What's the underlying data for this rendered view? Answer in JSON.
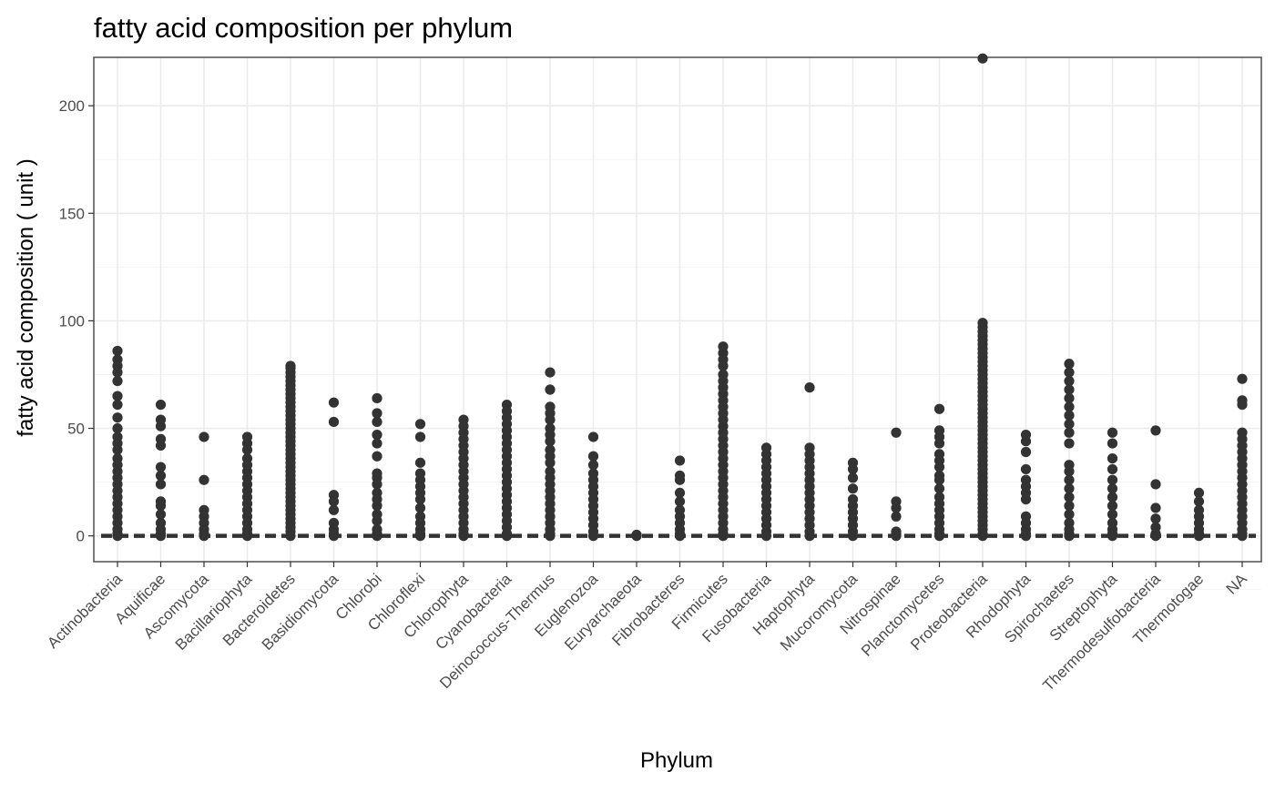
{
  "chart_data": {
    "type": "scatter",
    "title": "fatty acid composition per phylum",
    "xlabel": "Phylum",
    "ylabel": "fatty acid composition ( unit )",
    "ylim": [
      -12,
      222.5
    ],
    "yticks": [
      0,
      50,
      100,
      150,
      200
    ],
    "grid": true,
    "reference_line": {
      "style": "dashed",
      "y": 0
    },
    "categories": [
      "Actinobacteria",
      "Aquificae",
      "Ascomycota",
      "Bacillariophyta",
      "Bacteroidetes",
      "Basidiomycota",
      "Chlorobi",
      "Chloroflexi",
      "Chlorophyta",
      "Cyanobacteria",
      "Deinococcus-Thermus",
      "Euglenozoa",
      "Euryarchaeota",
      "Fibrobacteres",
      "Firmicutes",
      "Fusobacteria",
      "Haptophyta",
      "Mucoromycota",
      "Nitrospinae",
      "Planctomycetes",
      "Proteobacteria",
      "Rhodophyta",
      "Spirochaetes",
      "Streptophyta",
      "Thermodesulfobacteria",
      "Thermotogae",
      "NA"
    ],
    "points": [
      {
        "category": "Actinobacteria",
        "max": 86,
        "outliers": [
          86,
          82,
          79,
          76,
          72,
          65,
          61,
          55,
          50,
          46,
          43,
          40,
          36,
          33,
          30,
          27,
          24,
          21,
          18,
          15,
          12,
          9,
          6,
          3,
          1,
          0
        ]
      },
      {
        "category": "Aquificae",
        "max": 61,
        "outliers": [
          61,
          54,
          51,
          45,
          42,
          32,
          28,
          24,
          16,
          14,
          10,
          6,
          3,
          1,
          0
        ]
      },
      {
        "category": "Ascomycota",
        "max": 46,
        "outliers": [
          46,
          26,
          12,
          9,
          6,
          3,
          1,
          0
        ]
      },
      {
        "category": "Bacillariophyta",
        "max": 46,
        "outliers": [
          46,
          43,
          40,
          36,
          33,
          30,
          27,
          24,
          21,
          18,
          15,
          12,
          9,
          6,
          3,
          1,
          0
        ]
      },
      {
        "category": "Bacteroidetes",
        "max": 79,
        "outliers": [
          79,
          78,
          76,
          74,
          72,
          70,
          68,
          66,
          64,
          62,
          60,
          58,
          56,
          54,
          52,
          50,
          48,
          46,
          44,
          42,
          40,
          38,
          36,
          34,
          32,
          30,
          28,
          26,
          24,
          22,
          20,
          18,
          16,
          14,
          12,
          10,
          8,
          6,
          4,
          2,
          0
        ]
      },
      {
        "category": "Basidiomycota",
        "max": 62,
        "outliers": [
          62,
          53,
          19,
          16,
          12,
          6,
          3,
          1,
          0
        ]
      },
      {
        "category": "Chlorobi",
        "max": 64,
        "outliers": [
          64,
          57,
          53,
          47,
          43,
          37,
          29,
          27,
          24,
          20,
          17,
          14,
          10,
          7,
          3,
          1,
          0
        ]
      },
      {
        "category": "Chloroflexi",
        "max": 52,
        "outliers": [
          52,
          46,
          34,
          29,
          26,
          23,
          20,
          17,
          13,
          9,
          6,
          3,
          1,
          0
        ]
      },
      {
        "category": "Chlorophyta",
        "max": 54,
        "outliers": [
          54,
          51,
          48,
          45,
          42,
          39,
          36,
          33,
          30,
          27,
          24,
          21,
          18,
          15,
          12,
          9,
          6,
          3,
          1,
          0
        ]
      },
      {
        "category": "Cyanobacteria",
        "max": 61,
        "outliers": [
          61,
          58,
          55,
          52,
          49,
          46,
          43,
          40,
          37,
          34,
          31,
          28,
          25,
          22,
          19,
          16,
          13,
          10,
          7,
          4,
          1,
          0
        ]
      },
      {
        "category": "Deinococcus-Thermus",
        "max": 76,
        "outliers": [
          76,
          68,
          60,
          57,
          54,
          50,
          47,
          44,
          40,
          37,
          34,
          30,
          27,
          24,
          21,
          18,
          15,
          12,
          9,
          6,
          3,
          1,
          0
        ]
      },
      {
        "category": "Euglenozoa",
        "max": 46,
        "outliers": [
          46,
          37,
          33,
          29,
          26,
          23,
          20,
          17,
          14,
          11,
          8,
          5,
          2,
          0
        ]
      },
      {
        "category": "Euryarchaeota",
        "max": 0.5,
        "outliers": [
          0.5,
          0
        ]
      },
      {
        "category": "Fibrobacteres",
        "max": 35,
        "outliers": [
          35,
          28,
          26,
          20,
          16,
          12,
          9,
          6,
          3,
          1,
          0
        ]
      },
      {
        "category": "Firmicutes",
        "max": 88,
        "outliers": [
          88,
          85,
          82,
          79,
          75,
          72,
          69,
          66,
          63,
          60,
          57,
          54,
          51,
          48,
          45,
          42,
          39,
          36,
          33,
          30,
          27,
          24,
          21,
          18,
          15,
          12,
          9,
          6,
          3,
          1,
          0
        ]
      },
      {
        "category": "Fusobacteria",
        "max": 41,
        "outliers": [
          41,
          38,
          35,
          32,
          29,
          26,
          23,
          20,
          17,
          14,
          11,
          8,
          5,
          2,
          0
        ]
      },
      {
        "category": "Haptophyta",
        "max": 69,
        "outliers": [
          69,
          41,
          38,
          35,
          32,
          29,
          26,
          23,
          20,
          17,
          14,
          11,
          8,
          5,
          2,
          0
        ]
      },
      {
        "category": "Mucoromycota",
        "max": 34,
        "outliers": [
          34,
          31,
          27,
          22,
          17,
          14,
          11,
          8,
          5,
          2,
          0
        ]
      },
      {
        "category": "Nitrospinae",
        "max": 48,
        "outliers": [
          48,
          16,
          13,
          9,
          2,
          1,
          0
        ]
      },
      {
        "category": "Planctomycetes",
        "max": 59,
        "outliers": [
          59,
          49,
          46,
          43,
          38,
          35,
          32,
          28,
          26,
          22,
          18,
          15,
          12,
          9,
          6,
          3,
          1,
          0
        ]
      },
      {
        "category": "Proteobacteria",
        "max": 222,
        "outliers": [
          222,
          99,
          97,
          95,
          93,
          91,
          89,
          87,
          85,
          83,
          81,
          79,
          77,
          75,
          73,
          71,
          69,
          67,
          65,
          63,
          61,
          59,
          57,
          55,
          53,
          51,
          49,
          47,
          45,
          43,
          41,
          39,
          37,
          35,
          33,
          31,
          29,
          27,
          25,
          23,
          21,
          19,
          17,
          15,
          13,
          11,
          9,
          7,
          5,
          3,
          1,
          0
        ]
      },
      {
        "category": "Rhodophyta",
        "max": 47,
        "outliers": [
          47,
          44,
          39,
          31,
          26,
          23,
          20,
          17,
          9,
          6,
          3,
          1,
          0
        ]
      },
      {
        "category": "Spirochaetes",
        "max": 80,
        "outliers": [
          80,
          76,
          72,
          68,
          64,
          60,
          56,
          52,
          48,
          43,
          33,
          30,
          26,
          22,
          18,
          14,
          10,
          6,
          3,
          1,
          0
        ]
      },
      {
        "category": "Streptophyta",
        "max": 48,
        "outliers": [
          48,
          43,
          36,
          31,
          26,
          22,
          18,
          14,
          10,
          6,
          3,
          1,
          0
        ]
      },
      {
        "category": "Thermodesulfobacteria",
        "max": 49,
        "outliers": [
          49,
          24,
          13,
          8,
          4,
          1,
          0
        ]
      },
      {
        "category": "Thermotogae",
        "max": 20,
        "outliers": [
          20,
          16,
          12,
          9,
          6,
          3,
          1,
          0
        ]
      },
      {
        "category": "NA",
        "max": 73,
        "outliers": [
          73,
          63,
          61,
          48,
          45,
          42,
          39,
          36,
          33,
          30,
          27,
          24,
          21,
          18,
          15,
          12,
          9,
          6,
          3,
          1,
          0
        ]
      }
    ]
  }
}
